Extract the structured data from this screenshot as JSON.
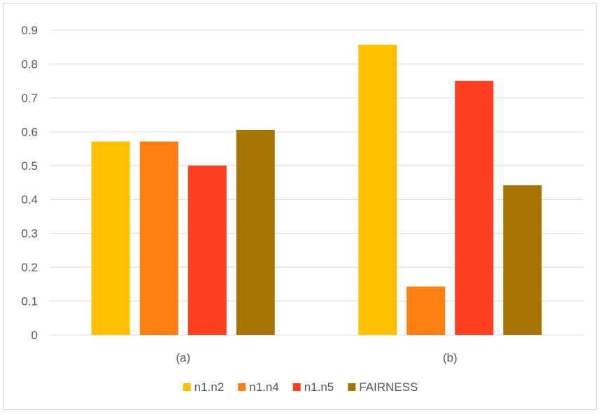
{
  "chart_data": {
    "type": "bar",
    "title": "",
    "xlabel": "",
    "ylabel": "",
    "categories": [
      "(a)",
      "(b)"
    ],
    "ylim": [
      0,
      0.9
    ],
    "yticks": [
      "0",
      "0.1",
      "0.2",
      "0.3",
      "0.4",
      "0.5",
      "0.6",
      "0.7",
      "0.8",
      "0.9"
    ],
    "grid": true,
    "legend_position": "bottom",
    "series": [
      {
        "name": "n1.n2",
        "color": "#FFC000",
        "values": [
          0.571,
          0.857
        ]
      },
      {
        "name": "n1.n4",
        "color": "#FF8010",
        "values": [
          0.571,
          0.143
        ]
      },
      {
        "name": "n1.n5",
        "color": "#FF4020",
        "values": [
          0.5,
          0.75
        ]
      },
      {
        "name": "FAIRNESS",
        "color": "#A67400",
        "values": [
          0.605,
          0.442
        ]
      }
    ]
  }
}
